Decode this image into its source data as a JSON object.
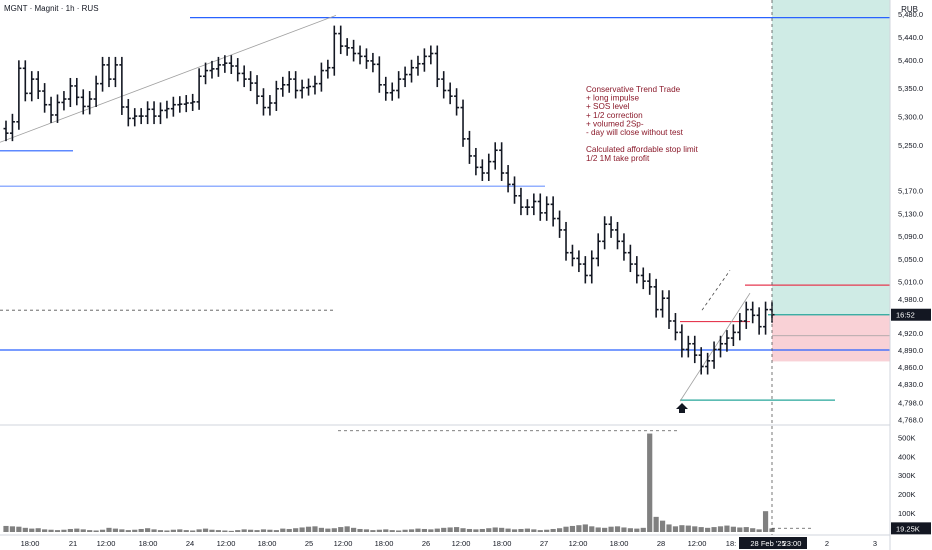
{
  "header": {
    "symbol_line": "MGNT · Magnit · 1h · RUS",
    "currency": "RUB"
  },
  "annotation": {
    "lines": [
      "Conservative Trend Trade",
      "+ long impulse",
      "+ SOS level",
      "+ 1/2 correction",
      "+ volumed 2Sp-",
      "- day will close without test",
      "",
      "Calculated affordable stop limit",
      "1/2 1M take profit"
    ],
    "color": "#8b1a2b"
  },
  "colors": {
    "blue_level": "#2962ff",
    "green_level": "#26a69a",
    "red_level": "#e53950",
    "profit_zone": "#cfebe5",
    "loss_zone": "#f9d1d6",
    "candle": "#131722",
    "volume": "#808080",
    "current_price_bg": "#26a69a",
    "volume_label_bg": "#131722"
  },
  "chart_data": {
    "type": "candlestick",
    "y_price_ticks": [
      "5,480.0",
      "5,440.0",
      "5,400.0",
      "5,350.0",
      "5,300.0",
      "5,250.0",
      "5,170.0",
      "5,130.0",
      "5,090.0",
      "5,050.0",
      "5,010.0",
      "4,980.0",
      "4,950.0",
      "4,920.0",
      "4,890.0",
      "4,860.0",
      "4,830.0",
      "4,798.0",
      "4,768.0"
    ],
    "y_volume_ticks": [
      "500K",
      "400K",
      "300K",
      "200K",
      "100K"
    ],
    "x_ticks": [
      "18:00",
      "21",
      "12:00",
      "18:00",
      "24",
      "12:00",
      "18:00",
      "25",
      "12:00",
      "18:00",
      "26",
      "12:00",
      "18:00",
      "27",
      "12:00",
      "18:00",
      "28",
      "12:00",
      "18:",
      "28 Feb '25",
      "23:00",
      "2",
      "3"
    ],
    "current_price_label": "16:52",
    "current_volume_label": "19.25K",
    "levels": {
      "top_resistance": 5474,
      "left_support": 5240,
      "mid_level": 5178,
      "sos_level": 4890,
      "low_level": 4802,
      "dashed_level": 4960,
      "entry": 4952,
      "stop_upper": 4940,
      "target": 5004
    },
    "trade_zones": {
      "profit_top": 5480,
      "profit_bottom": 4952,
      "loss_top": 4952,
      "loss_bottom": 4870
    },
    "price_range": [
      4760,
      5505
    ],
    "volume_range": [
      0,
      560
    ],
    "prices": [
      5271,
      5291,
      5385,
      5341,
      5366,
      5345,
      5321,
      5303,
      5325,
      5331,
      5354,
      5334,
      5318,
      5331,
      5358,
      5391,
      5366,
      5391,
      5317,
      5297,
      5301,
      5301,
      5313,
      5301,
      5311,
      5314,
      5321,
      5322,
      5324,
      5326,
      5371,
      5381,
      5384,
      5391,
      5394,
      5389,
      5376,
      5366,
      5359,
      5336,
      5316,
      5324,
      5349,
      5356,
      5366,
      5346,
      5351,
      5353,
      5358,
      5381,
      5386,
      5446,
      5424,
      5421,
      5411,
      5406,
      5398,
      5392,
      5356,
      5342,
      5346,
      5366,
      5374,
      5386,
      5393,
      5406,
      5411,
      5366,
      5346,
      5336,
      5316,
      5261,
      5231,
      5211,
      5201,
      5221,
      5241,
      5201,
      5181,
      5161,
      5141,
      5141,
      5151,
      5131,
      5146,
      5121,
      5101,
      5061,
      5051,
      5041,
      5021,
      5051,
      5081,
      5111,
      5101,
      5081,
      5061,
      5041,
      5021,
      5011,
      5001,
      4961,
      4981,
      4941,
      4921,
      4891,
      4901,
      4881,
      4861,
      4871,
      4891,
      4901,
      4911,
      4921,
      4941,
      4961,
      4951,
      4931,
      4961,
      4952
    ],
    "volumes": [
      32,
      30,
      28,
      22,
      18,
      20,
      14,
      12,
      10,
      12,
      16,
      18,
      14,
      10,
      8,
      12,
      22,
      18,
      14,
      10,
      12,
      16,
      20,
      14,
      10,
      8,
      12,
      14,
      10,
      8,
      14,
      18,
      12,
      10,
      8,
      6,
      10,
      14,
      12,
      10,
      14,
      12,
      10,
      18,
      16,
      20,
      24,
      28,
      30,
      22,
      18,
      20,
      26,
      30,
      22,
      16,
      14,
      10,
      12,
      14,
      10,
      8,
      12,
      14,
      18,
      16,
      14,
      18,
      22,
      24,
      26,
      20,
      16,
      14,
      16,
      20,
      24,
      22,
      18,
      14,
      16,
      18,
      14,
      10,
      12,
      16,
      20,
      28,
      32,
      36,
      40,
      30,
      24,
      22,
      28,
      30,
      24,
      20,
      18,
      22,
      520,
      80,
      60,
      40,
      30,
      36,
      34,
      30,
      26,
      22,
      26,
      30,
      34,
      28,
      24,
      26,
      20,
      14,
      110,
      19
    ]
  }
}
